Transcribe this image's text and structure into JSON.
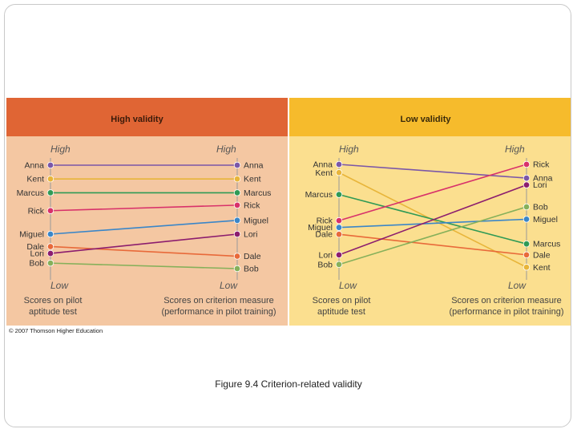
{
  "caption": "Figure 9.4   Criterion-related validity",
  "copyright": "© 2007 Thomson Higher Education",
  "colors": {
    "high_header": "#e06534",
    "high_body": "#f4c7a2",
    "low_header": "#f6bb2c",
    "low_body": "#fbdf8f",
    "axis": "#999999"
  },
  "people": [
    {
      "name": "Anna",
      "color": "#7b57a8"
    },
    {
      "name": "Kent",
      "color": "#e8b53a"
    },
    {
      "name": "Marcus",
      "color": "#2f9a55"
    },
    {
      "name": "Rick",
      "color": "#d8316a"
    },
    {
      "name": "Miguel",
      "color": "#3a86c8"
    },
    {
      "name": "Dale",
      "color": "#e86a3a"
    },
    {
      "name": "Lori",
      "color": "#8c1d6e"
    },
    {
      "name": "Bob",
      "color": "#86b05a"
    }
  ],
  "panels": [
    {
      "id": "high",
      "title": "High validity",
      "left_high": "High",
      "left_low": "Low",
      "right_high": "High",
      "right_low": "Low",
      "left_caption": [
        "Scores on pilot",
        "aptitude test"
      ],
      "right_caption": [
        "Scores on criterion measure",
        "(performance in pilot training)"
      ],
      "left_order": [
        "Anna",
        "Kent",
        "Marcus",
        "Rick",
        "Miguel",
        "Dale",
        "Lori",
        "Bob"
      ],
      "right_order": [
        "Anna",
        "Kent",
        "Marcus",
        "Rick",
        "Miguel",
        "Lori",
        "Dale",
        "Bob"
      ],
      "left_rank_positions": [
        1,
        2,
        3,
        4.3,
        6,
        6.9,
        7.4,
        8.1
      ],
      "right_rank_positions": [
        1,
        2,
        3,
        3.9,
        5,
        6,
        7.6,
        8.5
      ]
    },
    {
      "id": "low",
      "title": "Low validity",
      "left_high": "High",
      "left_low": "Low",
      "right_high": "High",
      "right_low": "Low",
      "left_caption": [
        "Scores on pilot",
        "aptitude test"
      ],
      "right_caption": [
        "Scores on criterion measure",
        "(performance in pilot training)"
      ],
      "left_order": [
        "Anna",
        "Kent",
        "Marcus",
        "Rick",
        "Miguel",
        "Dale",
        "Lori",
        "Bob"
      ],
      "right_order": [
        "Rick",
        "Anna",
        "Lori",
        "Bob",
        "Miguel",
        "Marcus",
        "Dale",
        "Kent"
      ],
      "left_rank_positions": [
        1,
        1.6,
        3.2,
        5.1,
        5.6,
        6.1,
        7.6,
        8.3
      ],
      "right_rank_positions": [
        1,
        2,
        2.5,
        4.1,
        5,
        6.8,
        7.6,
        8.5
      ]
    }
  ]
}
